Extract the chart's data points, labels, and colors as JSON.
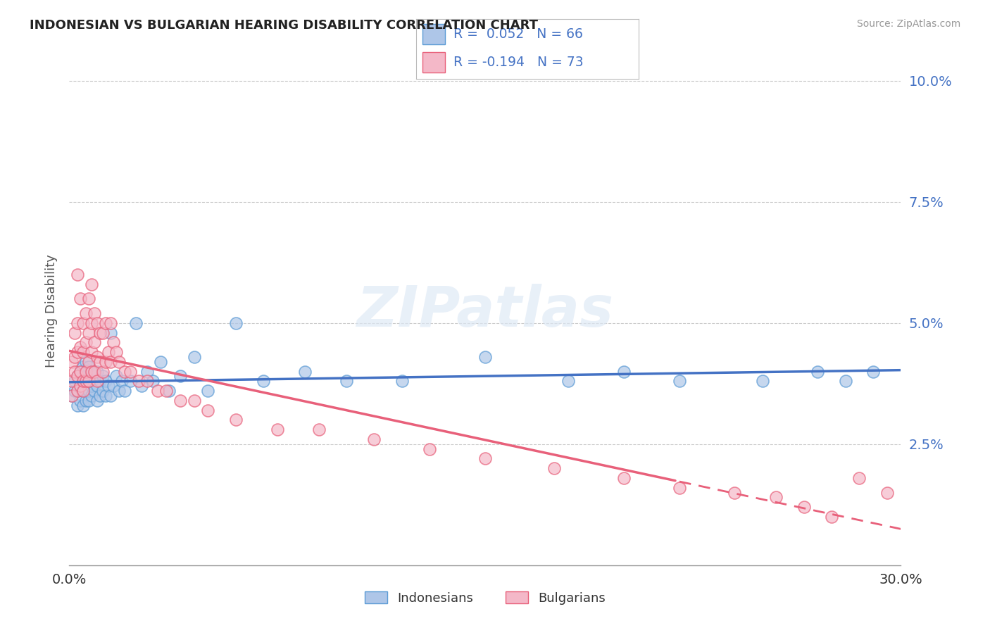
{
  "title": "INDONESIAN VS BULGARIAN HEARING DISABILITY CORRELATION CHART",
  "source": "Source: ZipAtlas.com",
  "ylabel": "Hearing Disability",
  "x_range": [
    0.0,
    0.3
  ],
  "y_range": [
    0.0,
    0.105
  ],
  "y_ticks": [
    0.025,
    0.05,
    0.075,
    0.1
  ],
  "y_tick_labels": [
    "2.5%",
    "5.0%",
    "7.5%",
    "10.0%"
  ],
  "x_ticks": [
    0.0,
    0.3
  ],
  "x_tick_labels": [
    "0.0%",
    "30.0%"
  ],
  "color_indonesian_fill": "#aec6e8",
  "color_indonesian_edge": "#5b9bd5",
  "color_bulgarian_fill": "#f4b8c8",
  "color_bulgarian_edge": "#e8607a",
  "color_line_indonesian": "#4472c4",
  "color_line_bulgarian": "#e8607a",
  "watermark_text": "ZIPatlas",
  "legend_entries": [
    {
      "label": "R =  0.052   N = 66",
      "fill": "#aec6e8",
      "edge": "#5b9bd5"
    },
    {
      "label": "R = -0.194   N = 73",
      "fill": "#f4b8c8",
      "edge": "#e8607a"
    }
  ],
  "bottom_legend": [
    "Indonesians",
    "Bulgarians"
  ],
  "indonesian_x": [
    0.001,
    0.002,
    0.002,
    0.003,
    0.003,
    0.003,
    0.004,
    0.004,
    0.004,
    0.005,
    0.005,
    0.005,
    0.005,
    0.006,
    0.006,
    0.006,
    0.006,
    0.007,
    0.007,
    0.007,
    0.007,
    0.008,
    0.008,
    0.008,
    0.009,
    0.009,
    0.01,
    0.01,
    0.01,
    0.011,
    0.011,
    0.012,
    0.012,
    0.013,
    0.013,
    0.014,
    0.015,
    0.015,
    0.016,
    0.017,
    0.018,
    0.019,
    0.02,
    0.022,
    0.024,
    0.026,
    0.028,
    0.03,
    0.033,
    0.036,
    0.04,
    0.045,
    0.05,
    0.06,
    0.07,
    0.085,
    0.1,
    0.12,
    0.15,
    0.18,
    0.2,
    0.22,
    0.25,
    0.27,
    0.28,
    0.29
  ],
  "indonesian_y": [
    0.035,
    0.036,
    0.038,
    0.033,
    0.036,
    0.039,
    0.034,
    0.037,
    0.04,
    0.033,
    0.036,
    0.038,
    0.041,
    0.034,
    0.036,
    0.039,
    0.042,
    0.034,
    0.036,
    0.038,
    0.041,
    0.035,
    0.037,
    0.04,
    0.036,
    0.039,
    0.034,
    0.037,
    0.04,
    0.035,
    0.038,
    0.036,
    0.039,
    0.035,
    0.038,
    0.037,
    0.035,
    0.048,
    0.037,
    0.039,
    0.036,
    0.038,
    0.036,
    0.038,
    0.05,
    0.037,
    0.04,
    0.038,
    0.042,
    0.036,
    0.039,
    0.043,
    0.036,
    0.05,
    0.038,
    0.04,
    0.038,
    0.038,
    0.043,
    0.038,
    0.04,
    0.038,
    0.038,
    0.04,
    0.038,
    0.04
  ],
  "bulgarian_x": [
    0.001,
    0.001,
    0.001,
    0.002,
    0.002,
    0.002,
    0.003,
    0.003,
    0.003,
    0.003,
    0.003,
    0.004,
    0.004,
    0.004,
    0.004,
    0.005,
    0.005,
    0.005,
    0.005,
    0.006,
    0.006,
    0.006,
    0.006,
    0.007,
    0.007,
    0.007,
    0.007,
    0.008,
    0.008,
    0.008,
    0.008,
    0.009,
    0.009,
    0.009,
    0.01,
    0.01,
    0.01,
    0.011,
    0.011,
    0.012,
    0.012,
    0.013,
    0.013,
    0.014,
    0.015,
    0.015,
    0.016,
    0.017,
    0.018,
    0.02,
    0.022,
    0.025,
    0.028,
    0.032,
    0.035,
    0.04,
    0.045,
    0.05,
    0.06,
    0.075,
    0.09,
    0.11,
    0.13,
    0.15,
    0.175,
    0.2,
    0.22,
    0.24,
    0.255,
    0.265,
    0.275,
    0.285,
    0.295
  ],
  "bulgarian_y": [
    0.035,
    0.038,
    0.042,
    0.04,
    0.043,
    0.048,
    0.036,
    0.039,
    0.044,
    0.05,
    0.06,
    0.037,
    0.04,
    0.045,
    0.055,
    0.036,
    0.038,
    0.044,
    0.05,
    0.038,
    0.04,
    0.046,
    0.052,
    0.038,
    0.042,
    0.048,
    0.055,
    0.04,
    0.044,
    0.05,
    0.058,
    0.04,
    0.046,
    0.052,
    0.038,
    0.043,
    0.05,
    0.042,
    0.048,
    0.04,
    0.048,
    0.042,
    0.05,
    0.044,
    0.042,
    0.05,
    0.046,
    0.044,
    0.042,
    0.04,
    0.04,
    0.038,
    0.038,
    0.036,
    0.036,
    0.034,
    0.034,
    0.032,
    0.03,
    0.028,
    0.028,
    0.026,
    0.024,
    0.022,
    0.02,
    0.018,
    0.016,
    0.015,
    0.014,
    0.012,
    0.01,
    0.018,
    0.015
  ],
  "bul_line_solid_end": 0.22,
  "bul_line_dash_start": 0.22
}
